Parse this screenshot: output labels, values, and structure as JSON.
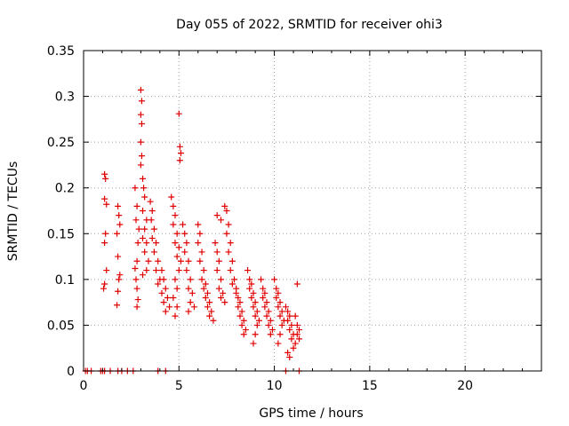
{
  "chart_data": {
    "type": "scatter",
    "title": "Day 055 of 2022, SRMTID for receiver ohi3",
    "xlabel": "GPS time / hours",
    "ylabel": "SRMTID / TECUs",
    "xlim": [
      0,
      24
    ],
    "ylim": [
      0,
      0.35
    ],
    "xticks": [
      0,
      5,
      10,
      15,
      20
    ],
    "xtick_labels": [
      "0",
      "5",
      "10",
      "15",
      "20"
    ],
    "yticks": [
      0,
      0.05,
      0.1,
      0.15,
      0.2,
      0.25,
      0.3,
      0.35
    ],
    "ytick_labels": [
      "0",
      "0.05",
      "0.1",
      "0.15",
      "0.2",
      "0.25",
      "0.3",
      "0.35"
    ],
    "grid": true,
    "marker": "plus",
    "color": "#e00000",
    "series": [
      {
        "name": "SRMTID",
        "points": [
          [
            0.1,
            0
          ],
          [
            0.2,
            0
          ],
          [
            0.4,
            0
          ],
          [
            0.9,
            0
          ],
          [
            1.0,
            0
          ],
          [
            1.1,
            0
          ],
          [
            1.4,
            0
          ],
          [
            1.8,
            0
          ],
          [
            2.0,
            0
          ],
          [
            2.3,
            0
          ],
          [
            2.6,
            0
          ],
          [
            3.9,
            0
          ],
          [
            4.3,
            0
          ],
          [
            10.6,
            0
          ],
          [
            11.3,
            0
          ],
          [
            1.1,
            0.215
          ],
          [
            1.15,
            0.21
          ],
          [
            1.1,
            0.188
          ],
          [
            1.2,
            0.182
          ],
          [
            1.15,
            0.15
          ],
          [
            1.1,
            0.14
          ],
          [
            1.2,
            0.11
          ],
          [
            1.1,
            0.095
          ],
          [
            1.05,
            0.09
          ],
          [
            1.8,
            0.18
          ],
          [
            1.85,
            0.17
          ],
          [
            1.9,
            0.16
          ],
          [
            1.75,
            0.15
          ],
          [
            1.8,
            0.125
          ],
          [
            1.9,
            0.105
          ],
          [
            1.85,
            0.1
          ],
          [
            1.8,
            0.087
          ],
          [
            1.75,
            0.072
          ],
          [
            2.7,
            0.2
          ],
          [
            2.8,
            0.18
          ],
          [
            2.75,
            0.165
          ],
          [
            2.9,
            0.155
          ],
          [
            2.85,
            0.14
          ],
          [
            2.8,
            0.12
          ],
          [
            2.7,
            0.112
          ],
          [
            2.75,
            0.1
          ],
          [
            2.8,
            0.09
          ],
          [
            2.85,
            0.078
          ],
          [
            2.8,
            0.07
          ],
          [
            3.0,
            0.307
          ],
          [
            3.05,
            0.295
          ],
          [
            3.0,
            0.28
          ],
          [
            3.05,
            0.27
          ],
          [
            3.0,
            0.25
          ],
          [
            3.05,
            0.235
          ],
          [
            3.0,
            0.225
          ],
          [
            3.1,
            0.21
          ],
          [
            3.15,
            0.2
          ],
          [
            3.2,
            0.19
          ],
          [
            3.1,
            0.175
          ],
          [
            3.3,
            0.165
          ],
          [
            3.2,
            0.155
          ],
          [
            3.1,
            0.145
          ],
          [
            3.3,
            0.14
          ],
          [
            3.2,
            0.13
          ],
          [
            3.4,
            0.12
          ],
          [
            3.3,
            0.11
          ],
          [
            3.1,
            0.105
          ],
          [
            3.5,
            0.185
          ],
          [
            3.6,
            0.175
          ],
          [
            3.55,
            0.165
          ],
          [
            3.7,
            0.155
          ],
          [
            3.6,
            0.145
          ],
          [
            3.8,
            0.14
          ],
          [
            3.7,
            0.13
          ],
          [
            3.9,
            0.12
          ],
          [
            3.8,
            0.11
          ],
          [
            4.0,
            0.1
          ],
          [
            3.9,
            0.095
          ],
          [
            4.1,
            0.11
          ],
          [
            4.2,
            0.1
          ],
          [
            4.3,
            0.09
          ],
          [
            4.1,
            0.085
          ],
          [
            4.4,
            0.08
          ],
          [
            4.2,
            0.075
          ],
          [
            4.5,
            0.07
          ],
          [
            4.3,
            0.065
          ],
          [
            4.6,
            0.19
          ],
          [
            4.7,
            0.18
          ],
          [
            4.8,
            0.17
          ],
          [
            4.7,
            0.16
          ],
          [
            4.9,
            0.15
          ],
          [
            4.8,
            0.14
          ],
          [
            5.0,
            0.135
          ],
          [
            4.9,
            0.125
          ],
          [
            5.1,
            0.12
          ],
          [
            5.0,
            0.11
          ],
          [
            4.8,
            0.1
          ],
          [
            4.9,
            0.09
          ],
          [
            4.7,
            0.08
          ],
          [
            4.9,
            0.07
          ],
          [
            4.8,
            0.06
          ],
          [
            5.0,
            0.281
          ],
          [
            5.05,
            0.245
          ],
          [
            5.1,
            0.238
          ],
          [
            5.05,
            0.23
          ],
          [
            5.2,
            0.16
          ],
          [
            5.3,
            0.15
          ],
          [
            5.4,
            0.14
          ],
          [
            5.3,
            0.13
          ],
          [
            5.5,
            0.12
          ],
          [
            5.4,
            0.11
          ],
          [
            5.6,
            0.1
          ],
          [
            5.5,
            0.09
          ],
          [
            5.7,
            0.085
          ],
          [
            5.6,
            0.075
          ],
          [
            5.8,
            0.07
          ],
          [
            5.5,
            0.065
          ],
          [
            6.0,
            0.16
          ],
          [
            6.1,
            0.15
          ],
          [
            6.0,
            0.14
          ],
          [
            6.2,
            0.13
          ],
          [
            6.1,
            0.12
          ],
          [
            6.3,
            0.11
          ],
          [
            6.2,
            0.1
          ],
          [
            6.4,
            0.095
          ],
          [
            6.3,
            0.09
          ],
          [
            6.5,
            0.085
          ],
          [
            6.4,
            0.08
          ],
          [
            6.6,
            0.075
          ],
          [
            6.5,
            0.07
          ],
          [
            6.7,
            0.065
          ],
          [
            6.6,
            0.06
          ],
          [
            6.8,
            0.055
          ],
          [
            6.9,
            0.14
          ],
          [
            7.0,
            0.13
          ],
          [
            7.1,
            0.12
          ],
          [
            7.0,
            0.11
          ],
          [
            7.2,
            0.1
          ],
          [
            7.1,
            0.09
          ],
          [
            7.3,
            0.085
          ],
          [
            7.2,
            0.08
          ],
          [
            7.4,
            0.075
          ],
          [
            7.0,
            0.17
          ],
          [
            7.2,
            0.165
          ],
          [
            7.4,
            0.18
          ],
          [
            7.5,
            0.175
          ],
          [
            7.6,
            0.16
          ],
          [
            7.5,
            0.15
          ],
          [
            7.7,
            0.14
          ],
          [
            7.6,
            0.13
          ],
          [
            7.8,
            0.12
          ],
          [
            7.7,
            0.11
          ],
          [
            7.9,
            0.1
          ],
          [
            7.8,
            0.095
          ],
          [
            8.0,
            0.09
          ],
          [
            8.0,
            0.085
          ],
          [
            8.1,
            0.08
          ],
          [
            8.2,
            0.075
          ],
          [
            8.1,
            0.07
          ],
          [
            8.3,
            0.065
          ],
          [
            8.2,
            0.06
          ],
          [
            8.4,
            0.055
          ],
          [
            8.3,
            0.05
          ],
          [
            8.5,
            0.045
          ],
          [
            8.4,
            0.04
          ],
          [
            8.6,
            0.11
          ],
          [
            8.7,
            0.1
          ],
          [
            8.8,
            0.095
          ],
          [
            8.7,
            0.09
          ],
          [
            8.9,
            0.085
          ],
          [
            8.8,
            0.08
          ],
          [
            9.0,
            0.075
          ],
          [
            8.9,
            0.07
          ],
          [
            9.1,
            0.065
          ],
          [
            9.0,
            0.06
          ],
          [
            9.2,
            0.055
          ],
          [
            9.1,
            0.05
          ],
          [
            9.0,
            0.04
          ],
          [
            8.9,
            0.03
          ],
          [
            9.3,
            0.1
          ],
          [
            9.4,
            0.09
          ],
          [
            9.5,
            0.085
          ],
          [
            9.4,
            0.08
          ],
          [
            9.6,
            0.075
          ],
          [
            9.5,
            0.07
          ],
          [
            9.7,
            0.065
          ],
          [
            9.6,
            0.06
          ],
          [
            9.8,
            0.055
          ],
          [
            9.7,
            0.05
          ],
          [
            9.9,
            0.045
          ],
          [
            9.8,
            0.04
          ],
          [
            10.0,
            0.1
          ],
          [
            10.1,
            0.09
          ],
          [
            10.2,
            0.085
          ],
          [
            10.1,
            0.08
          ],
          [
            10.3,
            0.075
          ],
          [
            10.2,
            0.07
          ],
          [
            10.4,
            0.065
          ],
          [
            10.3,
            0.06
          ],
          [
            10.5,
            0.055
          ],
          [
            10.4,
            0.05
          ],
          [
            10.3,
            0.04
          ],
          [
            10.2,
            0.03
          ],
          [
            10.6,
            0.07
          ],
          [
            10.7,
            0.065
          ],
          [
            10.8,
            0.06
          ],
          [
            10.7,
            0.055
          ],
          [
            10.9,
            0.05
          ],
          [
            10.8,
            0.045
          ],
          [
            11.0,
            0.04
          ],
          [
            10.9,
            0.035
          ],
          [
            11.1,
            0.03
          ],
          [
            11.0,
            0.025
          ],
          [
            10.7,
            0.02
          ],
          [
            10.8,
            0.015
          ],
          [
            11.2,
            0.095
          ],
          [
            11.1,
            0.06
          ],
          [
            11.2,
            0.05
          ],
          [
            11.3,
            0.045
          ],
          [
            11.2,
            0.04
          ],
          [
            11.3,
            0.035
          ]
        ]
      }
    ]
  }
}
